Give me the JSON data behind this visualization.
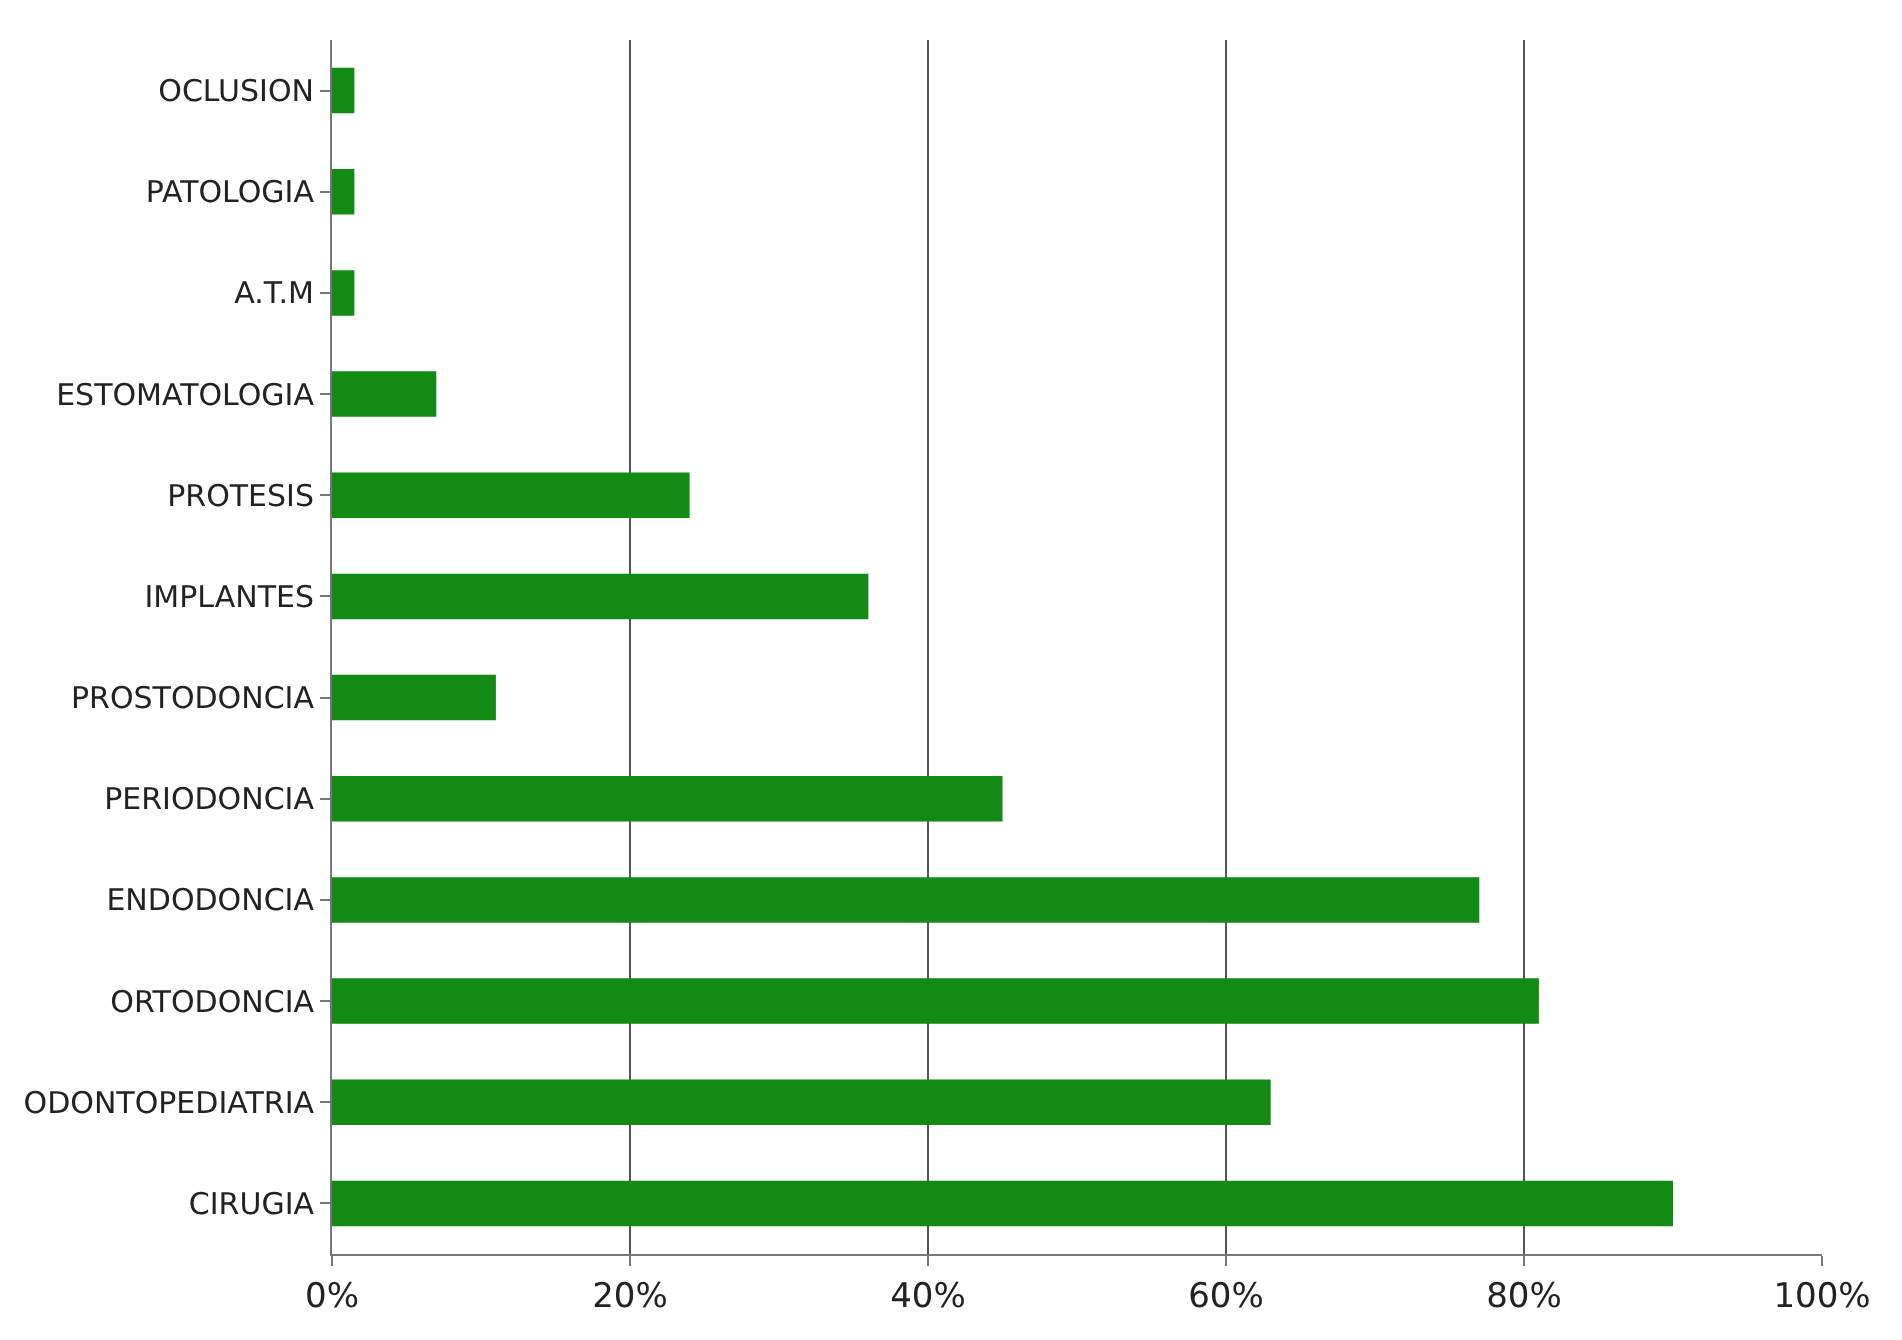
{
  "chart_data": {
    "type": "bar",
    "orientation": "horizontal",
    "categories": [
      "OCLUSION",
      "PATOLOGIA",
      "A.T.M",
      "ESTOMATOLOGIA",
      "PROTESIS",
      "IMPLANTES",
      "PROSTODONCIA",
      "PERIODONCIA",
      "ENDODONCIA",
      "ORTODONCIA",
      "ODONTOPEDIATRIA",
      "CIRUGIA"
    ],
    "values": [
      1.5,
      1.5,
      1.5,
      7,
      24,
      36,
      11,
      45,
      77,
      81,
      63,
      90
    ],
    "color": "#138a13",
    "xlim": [
      0,
      100
    ],
    "xticks": [
      {
        "value": 0,
        "label": "0%"
      },
      {
        "value": 20,
        "label": "20%"
      },
      {
        "value": 40,
        "label": "40%"
      },
      {
        "value": 60,
        "label": "60%"
      },
      {
        "value": 80,
        "label": "80%"
      },
      {
        "value": 100,
        "label": "100%"
      }
    ],
    "grid": "x",
    "legend": false
  }
}
